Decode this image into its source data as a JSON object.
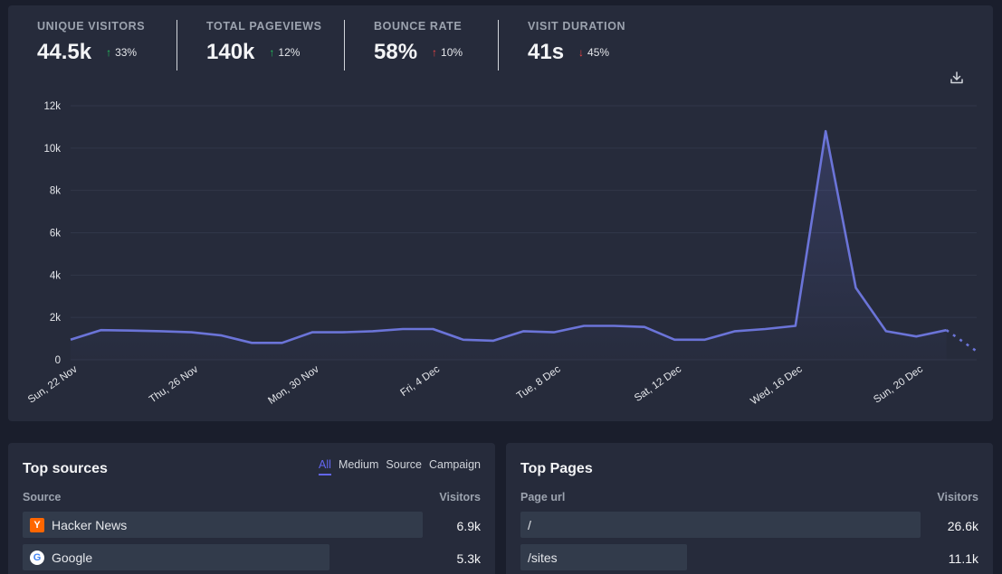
{
  "stats": [
    {
      "label": "UNIQUE VISITORS",
      "value": "44.5k",
      "change": "33%",
      "direction": "up",
      "color": "#22c55e"
    },
    {
      "label": "TOTAL PAGEVIEWS",
      "value": "140k",
      "change": "12%",
      "direction": "up",
      "color": "#22c55e"
    },
    {
      "label": "BOUNCE RATE",
      "value": "58%",
      "change": "10%",
      "direction": "up",
      "color": "#ef4444"
    },
    {
      "label": "VISIT DURATION",
      "value": "41s",
      "change": "45%",
      "direction": "down",
      "color": "#ef4444"
    }
  ],
  "icons": {
    "arrow_up": "↑",
    "arrow_down": "↓",
    "download": "download-icon"
  },
  "colors": {
    "line": "#6b74d8",
    "accent": "#6366f1",
    "card": "#262b3b",
    "background": "#1a1e2c"
  },
  "chart_data": {
    "type": "line",
    "x": [
      "Sun, 22 Nov",
      "23 Nov",
      "24 Nov",
      "25 Nov",
      "Thu, 26 Nov",
      "27 Nov",
      "28 Nov",
      "29 Nov",
      "Mon, 30 Nov",
      "1 Dec",
      "2 Dec",
      "3 Dec",
      "Fri, 4 Dec",
      "5 Dec",
      "6 Dec",
      "7 Dec",
      "Tue, 8 Dec",
      "9 Dec",
      "10 Dec",
      "11 Dec",
      "Sat, 12 Dec",
      "13 Dec",
      "14 Dec",
      "15 Dec",
      "Wed, 16 Dec",
      "17 Dec",
      "18 Dec",
      "19 Dec",
      "Sun, 20 Dec",
      "21 Dec"
    ],
    "x_tick_labels": [
      "Sun, 22 Nov",
      "Thu, 26 Nov",
      "Mon, 30 Nov",
      "Fri, 4 Dec",
      "Tue, 8 Dec",
      "Sat, 12 Dec",
      "Wed, 16 Dec",
      "Sun, 20 Dec"
    ],
    "series": [
      {
        "values": [
          950,
          1400,
          1380,
          1350,
          1300,
          1150,
          800,
          800,
          1300,
          1300,
          1350,
          1450,
          1450,
          950,
          900,
          1350,
          1300,
          1600,
          1600,
          1550,
          950,
          950,
          1350,
          1450,
          1600,
          10800,
          3400,
          1350,
          1100,
          1400
        ]
      }
    ],
    "projected_last": 400,
    "y_ticks": [
      "0",
      "2k",
      "4k",
      "6k",
      "8k",
      "10k",
      "12k"
    ],
    "ylim": [
      0,
      12000
    ],
    "grid": true
  },
  "top_sources": {
    "title": "Top sources",
    "tabs": [
      "All",
      "Medium",
      "Source",
      "Campaign"
    ],
    "active_tab": "All",
    "col_source": "Source",
    "col_visitors": "Visitors",
    "rows": [
      {
        "label": "Hacker News",
        "value": "6.9k",
        "icon": "hacker-news-icon",
        "icon_glyph": "Y",
        "fraction": 1.0
      },
      {
        "label": "Google",
        "value": "5.3k",
        "icon": "google-icon",
        "icon_glyph": "G",
        "fraction": 0.768
      }
    ]
  },
  "top_pages": {
    "title": "Top Pages",
    "col_page": "Page url",
    "col_visitors": "Visitors",
    "rows": [
      {
        "label": "/",
        "value": "26.6k",
        "fraction": 1.0
      },
      {
        "label": "/sites",
        "value": "11.1k",
        "fraction": 0.417
      }
    ]
  }
}
